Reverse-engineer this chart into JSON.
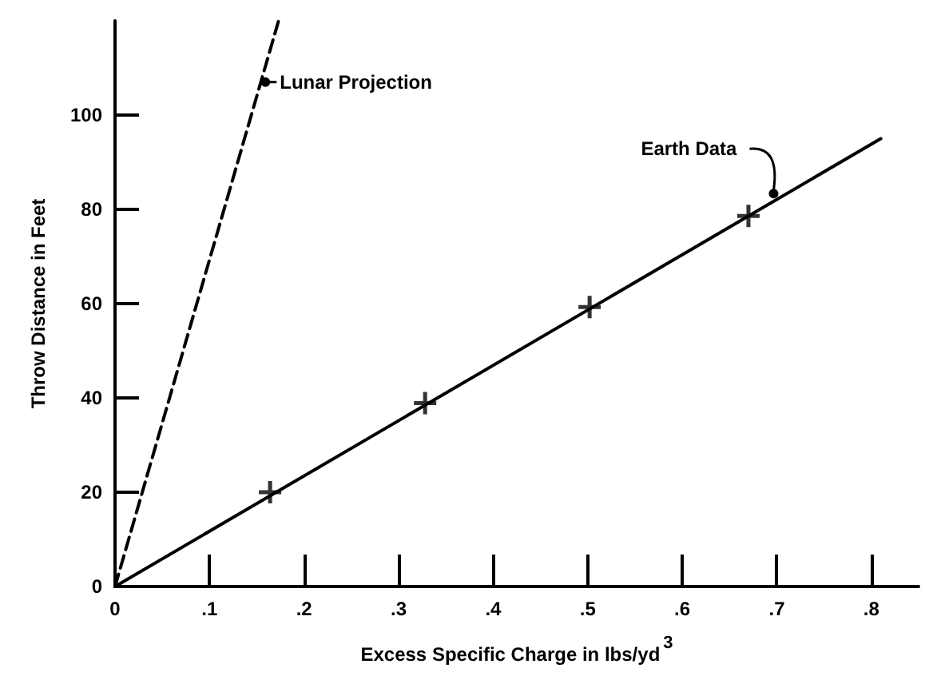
{
  "chart_data": {
    "type": "line",
    "xlabel": "Excess Specific Charge in lbs/yd$^{3}$",
    "ylabel": "Throw Distance in Feet",
    "xlim": [
      0,
      0.85
    ],
    "ylim": [
      0,
      120
    ],
    "xticks": [
      0,
      {
        "value": 0.1,
        "label": ".1"
      },
      {
        "value": 0.2,
        "label": ".2"
      },
      {
        "value": 0.3,
        "label": ".3"
      },
      {
        "value": 0.4,
        "label": ".4"
      },
      {
        "value": 0.5,
        "label": ".5"
      },
      {
        "value": 0.6,
        "label": ".6"
      },
      {
        "value": 0.7,
        "label": ".7"
      },
      {
        "value": 0.8,
        "label": ".8"
      }
    ],
    "yticks": [
      0,
      20,
      40,
      60,
      80,
      100
    ],
    "grid": false,
    "series": [
      {
        "color": "#000000",
        "line_style": "dashed",
        "marker": "none",
        "x": [
          0,
          0.173
        ],
        "values": [
          0,
          120
        ]
      },
      {
        "color": "#000000",
        "line_style": "solid",
        "marker": "none",
        "x": [
          0,
          0.81
        ],
        "values": [
          0,
          95
        ]
      },
      {
        "type": "scatter",
        "color": "#000000",
        "marker": "cross",
        "x": [
          0.164,
          0.328,
          0.502,
          0.67
        ],
        "values": [
          20,
          38.9,
          59.3,
          78.6
        ]
      }
    ],
    "annotations": [
      {
        "text": "Lunar Projection",
        "x": 0.154,
        "y": 107
      },
      {
        "text": "Earth Data",
        "x": 0.7,
        "y": 82
      }
    ]
  }
}
